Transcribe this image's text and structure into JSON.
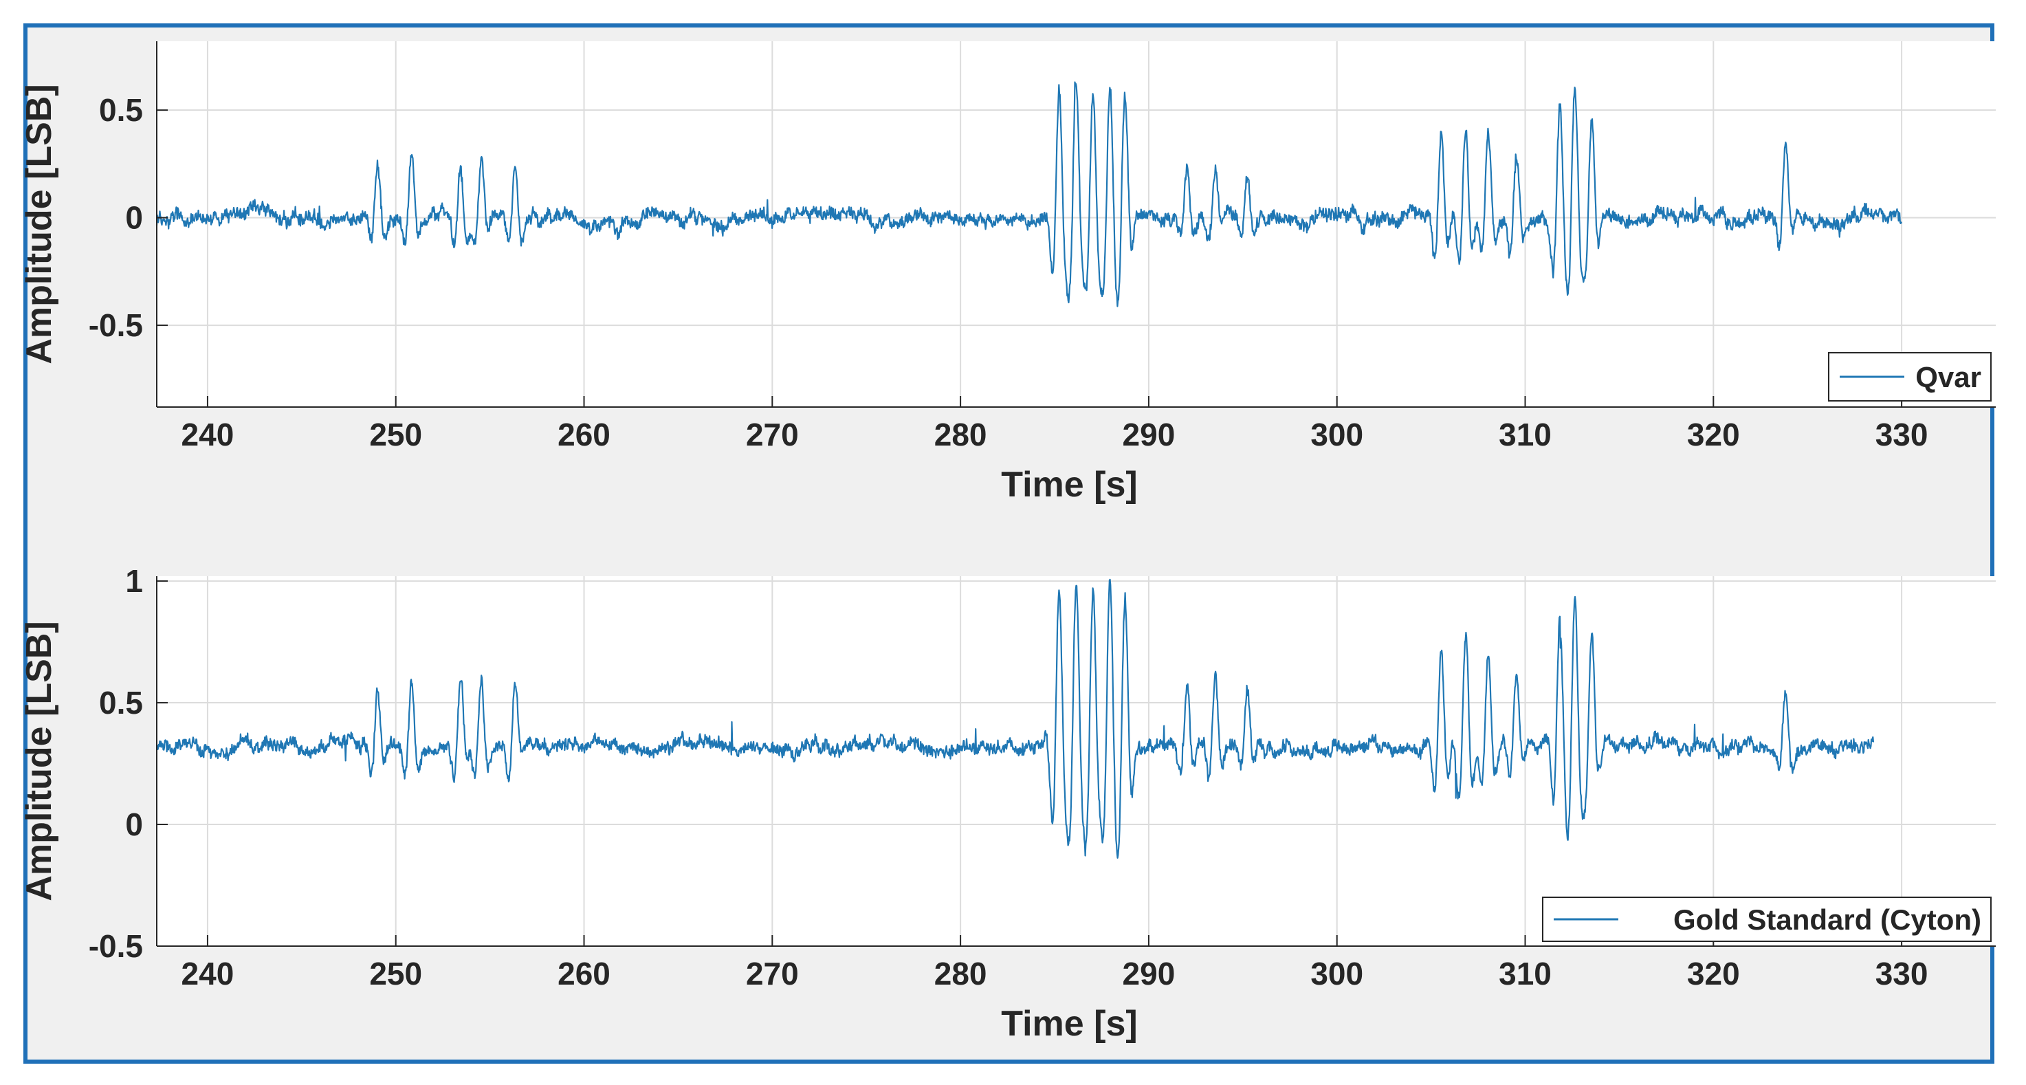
{
  "chart_data": [
    {
      "type": "line",
      "xlabel": "Time [s]",
      "ylabel": "Amplitude [LSB]",
      "xlim": [
        237.3,
        335
      ],
      "ylim": [
        -0.88,
        0.82
      ],
      "xticks": [
        240,
        250,
        260,
        270,
        280,
        290,
        300,
        310,
        320,
        330
      ],
      "yticks": [
        -0.5,
        0,
        0.5
      ],
      "ytick_labels": [
        "-0.5",
        "0",
        "0.5"
      ],
      "grid": true,
      "legend_position": "bottom-right",
      "color": "#1f77b4",
      "series": [
        {
          "name": "Qvar",
          "baseline": 0,
          "t_start": 237.3,
          "t_end": 330,
          "noise_amplitude": 0.03,
          "events": [
            {
              "t": 249.0,
              "amp": 0.22
            },
            {
              "t": 250.8,
              "amp": 0.28
            },
            {
              "t": 253.4,
              "amp": 0.27
            },
            {
              "t": 254.5,
              "amp": 0.26
            },
            {
              "t": 256.3,
              "amp": 0.25
            },
            {
              "t": 285.2,
              "amp": 0.6
            },
            {
              "t": 286.1,
              "amp": 0.62
            },
            {
              "t": 287.0,
              "amp": 0.6
            },
            {
              "t": 287.9,
              "amp": 0.6
            },
            {
              "t": 288.7,
              "amp": 0.55
            },
            {
              "t": 292.0,
              "amp": 0.22
            },
            {
              "t": 293.5,
              "amp": 0.22
            },
            {
              "t": 295.2,
              "amp": 0.18
            },
            {
              "t": 305.5,
              "amp": 0.4
            },
            {
              "t": 306.8,
              "amp": 0.45
            },
            {
              "t": 308.0,
              "amp": 0.38
            },
            {
              "t": 309.5,
              "amp": 0.3
            },
            {
              "t": 311.8,
              "amp": 0.5
            },
            {
              "t": 312.6,
              "amp": 0.6
            },
            {
              "t": 313.5,
              "amp": 0.45
            },
            {
              "t": 323.8,
              "amp": 0.3
            }
          ]
        }
      ]
    },
    {
      "type": "line",
      "xlabel": "Time [s]",
      "ylabel": "Amplitude [LSB]",
      "xlim": [
        237.3,
        335
      ],
      "ylim": [
        -0.5,
        1.02
      ],
      "xticks": [
        240,
        250,
        260,
        270,
        280,
        290,
        300,
        310,
        320,
        330
      ],
      "yticks": [
        -0.5,
        0,
        0.5,
        1
      ],
      "ytick_labels": [
        "-0.5",
        "0",
        "0.5",
        "1"
      ],
      "grid": true,
      "legend_position": "bottom-right",
      "color": "#1f77b4",
      "series": [
        {
          "name": "Gold Standard (Cyton)",
          "baseline": 0.32,
          "t_start": 237.3,
          "t_end": 328.5,
          "noise_amplitude": 0.025,
          "events": [
            {
              "t": 249.0,
              "amp": 0.24
            },
            {
              "t": 250.8,
              "amp": 0.28
            },
            {
              "t": 253.4,
              "amp": 0.27
            },
            {
              "t": 254.5,
              "amp": 0.28
            },
            {
              "t": 256.3,
              "amp": 0.26
            },
            {
              "t": 285.2,
              "amp": 0.66
            },
            {
              "t": 286.1,
              "amp": 0.68
            },
            {
              "t": 287.0,
              "amp": 0.65
            },
            {
              "t": 287.9,
              "amp": 0.66
            },
            {
              "t": 288.7,
              "amp": 0.6
            },
            {
              "t": 292.0,
              "amp": 0.25
            },
            {
              "t": 293.5,
              "amp": 0.3
            },
            {
              "t": 295.2,
              "amp": 0.22
            },
            {
              "t": 305.5,
              "amp": 0.4
            },
            {
              "t": 306.8,
              "amp": 0.45
            },
            {
              "t": 308.0,
              "amp": 0.38
            },
            {
              "t": 309.5,
              "amp": 0.3
            },
            {
              "t": 311.8,
              "amp": 0.5
            },
            {
              "t": 312.6,
              "amp": 0.6
            },
            {
              "t": 313.5,
              "amp": 0.45
            },
            {
              "t": 323.8,
              "amp": 0.22
            }
          ]
        }
      ]
    }
  ]
}
